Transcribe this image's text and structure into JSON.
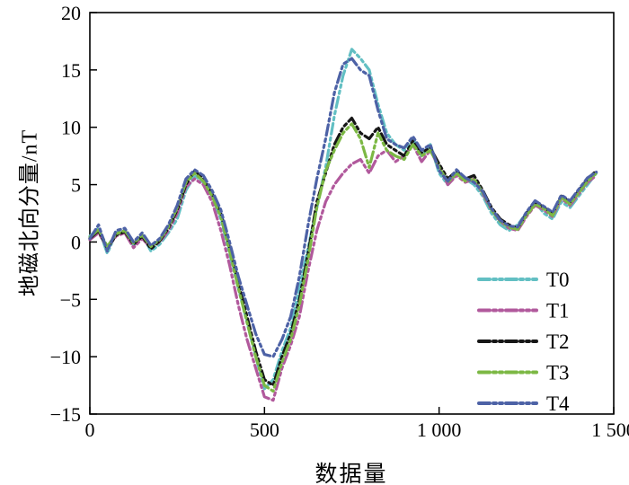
{
  "chart": {
    "ylabel": "地磁北向分量/nT",
    "xlabel": "数据量"
  },
  "chart_data": {
    "type": "line",
    "title": "",
    "xlabel": "数据量",
    "ylabel": "地磁北向分量/nT",
    "xlim": [
      0,
      1500
    ],
    "ylim": [
      -15,
      20
    ],
    "grid": false,
    "legend_position": "inside-lower-right",
    "line_style": "dash-dot-dot",
    "x_ticks": {
      "values": [
        0,
        500,
        1000,
        1500
      ],
      "labels": [
        "0",
        "500",
        "1 000",
        "1 500"
      ]
    },
    "y_ticks": {
      "values": [
        -15,
        -10,
        -5,
        0,
        5,
        10,
        15,
        20
      ],
      "labels": [
        "−15",
        "−10",
        "−5",
        "0",
        "5",
        "10",
        "15",
        "20"
      ]
    },
    "x": [
      0,
      25,
      50,
      75,
      100,
      125,
      150,
      175,
      200,
      225,
      250,
      275,
      300,
      325,
      350,
      375,
      400,
      425,
      450,
      475,
      500,
      525,
      550,
      575,
      600,
      625,
      650,
      675,
      700,
      725,
      750,
      775,
      800,
      825,
      850,
      875,
      900,
      925,
      950,
      975,
      1000,
      1025,
      1050,
      1075,
      1100,
      1125,
      1150,
      1175,
      1200,
      1225,
      1250,
      1275,
      1300,
      1325,
      1350,
      1375,
      1400,
      1425,
      1450
    ],
    "series": [
      {
        "name": "T0",
        "color": "#62bfc3",
        "values": [
          0.5,
          1.2,
          -1.0,
          0.8,
          1.0,
          -0.3,
          0.6,
          -0.8,
          -0.2,
          0.8,
          2.0,
          4.5,
          5.8,
          5.2,
          4.0,
          2.0,
          -1.0,
          -4.0,
          -7.0,
          -10.0,
          -12.8,
          -12.0,
          -9.5,
          -7.5,
          -4.0,
          -0.5,
          3.0,
          6.5,
          11.0,
          14.5,
          16.8,
          16.0,
          15.0,
          12.0,
          9.5,
          8.5,
          8.0,
          9.0,
          7.5,
          8.5,
          6.0,
          5.0,
          6.0,
          5.5,
          5.0,
          4.0,
          2.5,
          1.5,
          1.0,
          1.5,
          2.5,
          3.5,
          2.5,
          2.0,
          3.5,
          3.0,
          4.0,
          5.0,
          6.0
        ]
      },
      {
        "name": "T1",
        "color": "#b1599c",
        "values": [
          0.2,
          0.8,
          -0.5,
          0.5,
          0.8,
          -0.5,
          0.3,
          -0.5,
          0.0,
          1.0,
          2.5,
          4.8,
          5.5,
          5.0,
          3.5,
          1.0,
          -2.0,
          -5.5,
          -8.5,
          -11.0,
          -13.5,
          -13.8,
          -11.0,
          -9.0,
          -6.5,
          -2.5,
          1.0,
          3.5,
          5.0,
          6.0,
          6.8,
          7.2,
          6.0,
          7.5,
          8.0,
          7.0,
          7.5,
          8.5,
          7.0,
          8.0,
          6.5,
          5.0,
          5.8,
          5.2,
          5.5,
          4.2,
          2.8,
          1.8,
          1.2,
          1.0,
          2.2,
          3.2,
          2.8,
          2.2,
          3.8,
          3.2,
          4.2,
          5.2,
          5.8
        ]
      },
      {
        "name": "T2",
        "color": "#161616",
        "values": [
          0.3,
          1.0,
          -0.6,
          0.6,
          0.9,
          -0.2,
          0.5,
          -0.6,
          0.1,
          1.2,
          2.8,
          5.0,
          6.2,
          5.5,
          4.2,
          2.5,
          -0.5,
          -3.5,
          -6.5,
          -9.5,
          -12.0,
          -12.5,
          -10.0,
          -8.0,
          -5.0,
          -1.0,
          3.5,
          6.0,
          8.5,
          10.0,
          10.8,
          9.5,
          9.0,
          10.0,
          8.5,
          8.0,
          7.5,
          8.8,
          7.8,
          8.2,
          6.8,
          5.5,
          6.2,
          5.5,
          5.8,
          4.5,
          3.0,
          2.0,
          1.5,
          1.2,
          2.5,
          3.5,
          3.0,
          2.5,
          4.0,
          3.5,
          4.5,
          5.5,
          6.2
        ]
      },
      {
        "name": "T3",
        "color": "#7cb844",
        "values": [
          0.4,
          1.1,
          -0.4,
          0.7,
          1.0,
          -0.1,
          0.6,
          -0.4,
          0.2,
          1.3,
          3.0,
          5.2,
          6.0,
          5.3,
          4.0,
          2.2,
          -0.8,
          -4.0,
          -7.0,
          -10.0,
          -12.5,
          -13.0,
          -10.5,
          -8.5,
          -5.5,
          -1.5,
          3.0,
          6.2,
          8.0,
          9.5,
          10.3,
          9.0,
          6.5,
          9.5,
          8.0,
          7.5,
          7.2,
          8.5,
          7.5,
          8.0,
          6.5,
          5.2,
          6.0,
          5.3,
          5.5,
          4.3,
          2.8,
          1.8,
          1.3,
          1.1,
          2.3,
          3.3,
          2.9,
          2.3,
          3.9,
          3.3,
          4.3,
          5.3,
          6.0
        ]
      },
      {
        "name": "T4",
        "color": "#4d62a6",
        "values": [
          0.3,
          1.5,
          -0.8,
          1.0,
          1.2,
          0.0,
          0.8,
          -0.3,
          0.3,
          1.5,
          3.2,
          5.5,
          6.3,
          5.8,
          4.5,
          2.8,
          0.0,
          -3.0,
          -5.5,
          -8.0,
          -9.8,
          -10.0,
          -8.5,
          -6.5,
          -3.0,
          1.5,
          5.5,
          9.0,
          13.0,
          15.5,
          16.0,
          15.0,
          14.5,
          11.5,
          9.0,
          8.5,
          8.2,
          9.2,
          8.0,
          8.5,
          6.2,
          5.3,
          6.3,
          5.6,
          5.2,
          4.4,
          2.9,
          1.9,
          1.4,
          1.3,
          2.6,
          3.6,
          3.1,
          2.6,
          4.1,
          3.6,
          4.6,
          5.6,
          6.1
        ]
      }
    ]
  }
}
